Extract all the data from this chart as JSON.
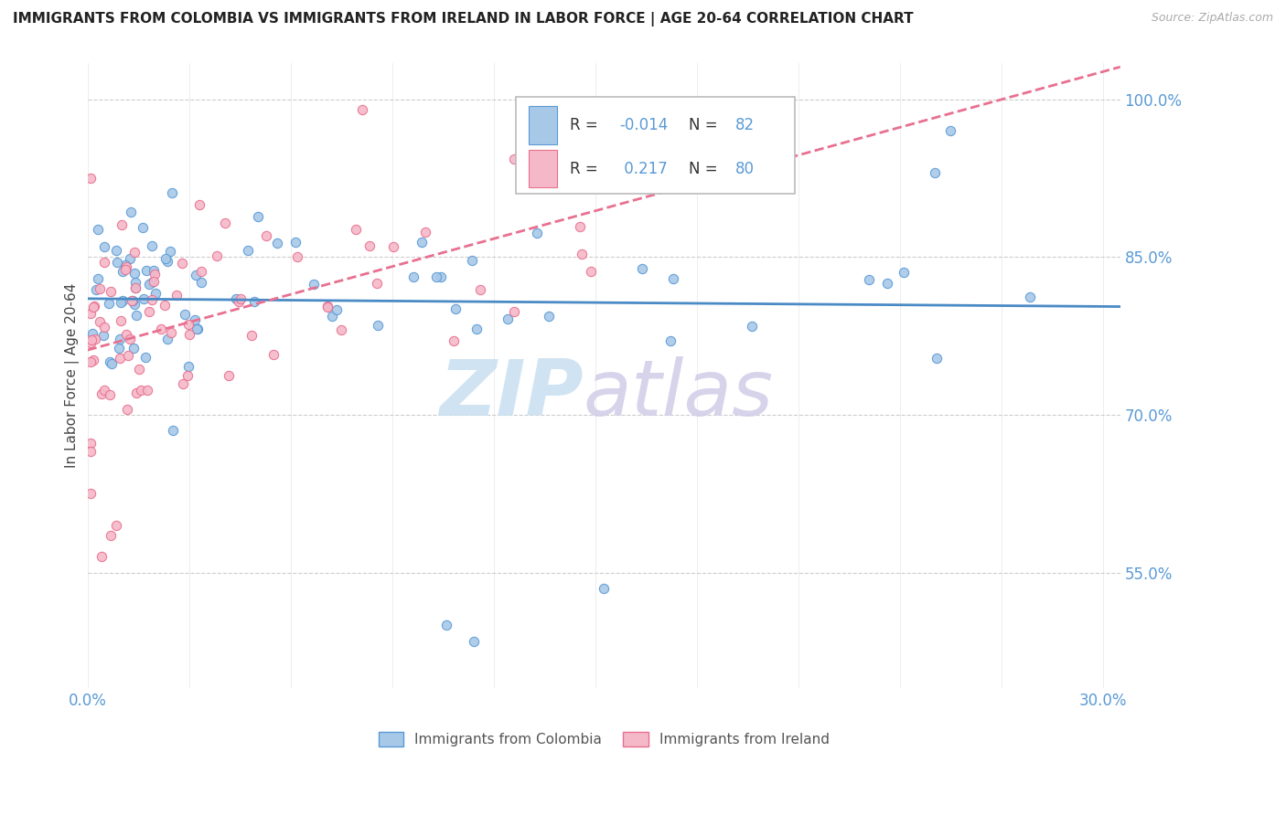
{
  "title": "IMMIGRANTS FROM COLOMBIA VS IMMIGRANTS FROM IRELAND IN LABOR FORCE | AGE 20-64 CORRELATION CHART",
  "source": "Source: ZipAtlas.com",
  "ylabel_label": "In Labor Force | Age 20-64",
  "ylabel_ticks_labels": [
    "100.0%",
    "85.0%",
    "70.0%",
    "55.0%"
  ],
  "ylabel_values": [
    1.0,
    0.85,
    0.7,
    0.55
  ],
  "xticks_labels": [
    "0.0%",
    "30.0%"
  ],
  "xticks_values": [
    0.0,
    0.3
  ],
  "xlim": [
    0.0,
    0.305
  ],
  "ylim": [
    0.44,
    1.035
  ],
  "legend_r_colombia": "-0.014",
  "legend_n_colombia": "82",
  "legend_r_ireland": "0.217",
  "legend_n_ireland": "80",
  "color_colombia_fill": "#a8c8e8",
  "color_colombia_edge": "#5a9ad5",
  "color_ireland_fill": "#f5b8c8",
  "color_ireland_edge": "#e87090",
  "trendline_colombia_color": "#4a8ac5",
  "trendline_ireland_color": "#e87090",
  "grid_color": "#cccccc",
  "watermark_zip_color": "#c8dff0",
  "watermark_atlas_color": "#d0cce8"
}
